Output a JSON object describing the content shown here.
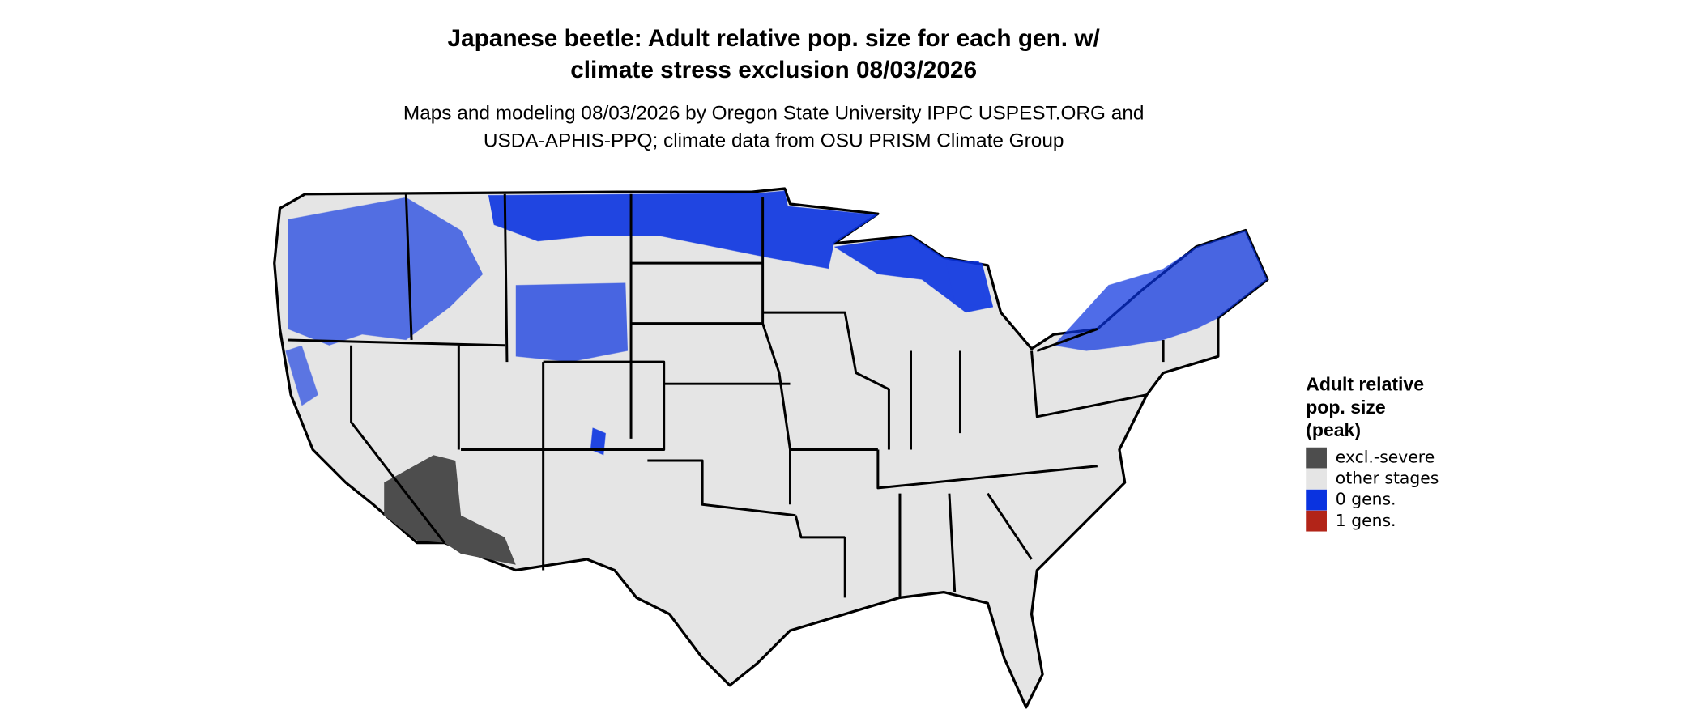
{
  "header": {
    "title": [
      "Japanese beetle: Adult relative pop. size for each gen. w/",
      "climate stress exclusion 08/03/2026"
    ],
    "subtitle": [
      "Maps and modeling 08/03/2026 by Oregon State University IPPC USPEST.ORG and",
      "USDA-APHIS-PPQ; climate data from OSU PRISM Climate Group"
    ]
  },
  "legend": {
    "title": [
      "Adult relative",
      "pop. size",
      "(peak)"
    ],
    "items": [
      {
        "label": "excl.-severe",
        "color": "#4d4d4d"
      },
      {
        "label": "other stages",
        "color": "#e5e5e5"
      },
      {
        "label": "0 gens.",
        "color": "#0a33e0"
      },
      {
        "label": "1 gens.",
        "color": "#b22418"
      }
    ]
  }
}
